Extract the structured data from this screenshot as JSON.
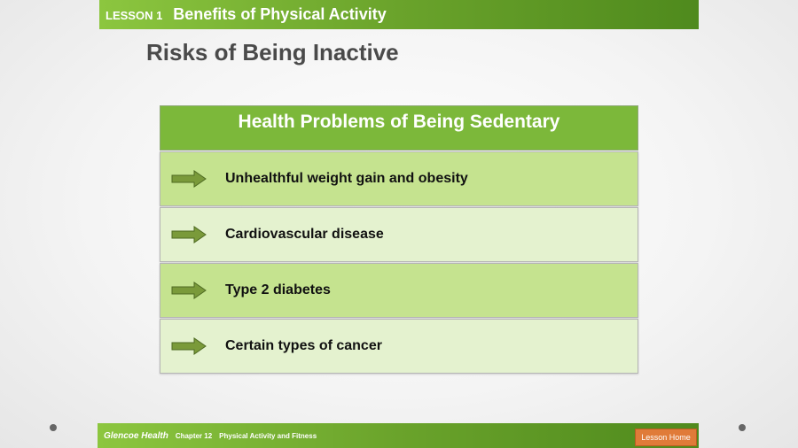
{
  "header": {
    "lesson_label": "LESSON 1",
    "lesson_title": "Benefits of Physical Activity"
  },
  "slide": {
    "title": "Risks of Being Inactive"
  },
  "table": {
    "header": "Health Problems of Being Sedentary",
    "rows": [
      "Unhealthful weight gain and obesity",
      "Cardiovascular disease",
      "Type 2 diabetes",
      "Certain types of cancer"
    ]
  },
  "footer": {
    "brand": "Glencoe Health",
    "chapter": "Chapter 12",
    "topic": "Physical Activity and Fitness",
    "lesson_home": "Lesson Home"
  },
  "colors": {
    "accent_green": "#7cb83a",
    "row_dark": "#c5e38f",
    "row_light": "#e4f2cf",
    "button_orange": "#e07b39"
  },
  "icons": {
    "row_marker": "right-arrow-icon",
    "nav_prev": "previous-dot-icon",
    "nav_next": "next-dot-icon"
  }
}
